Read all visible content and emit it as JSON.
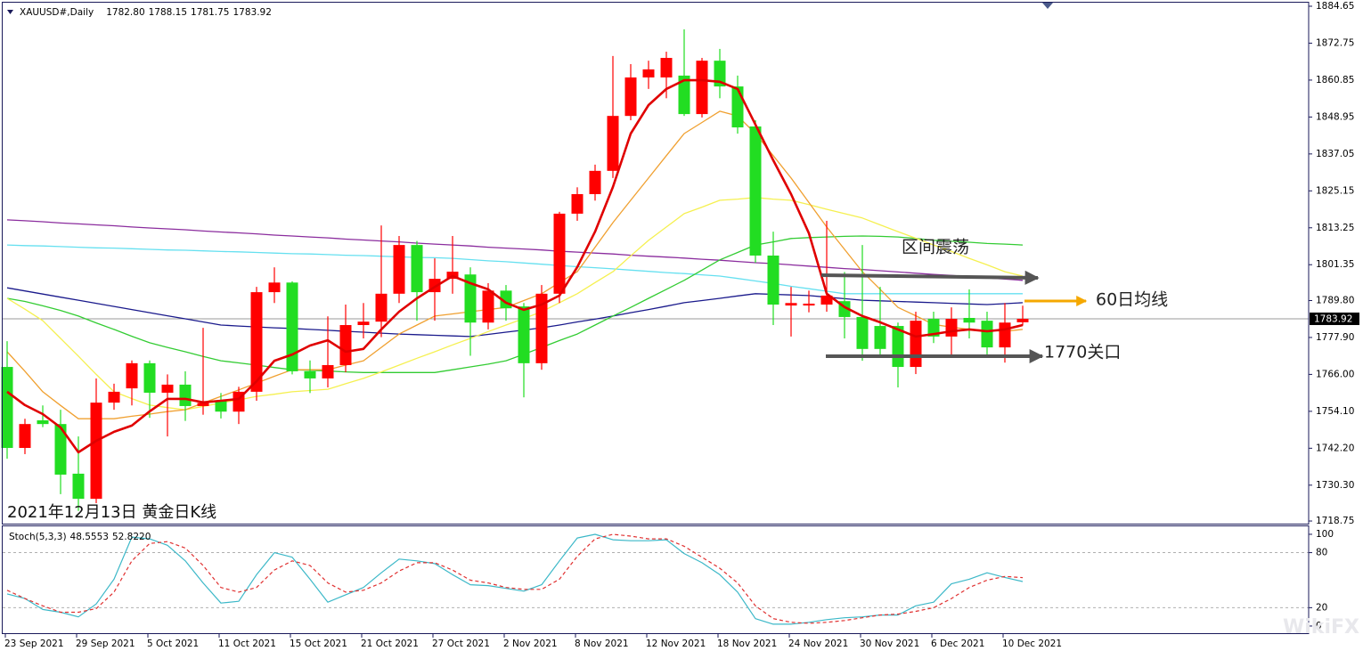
{
  "watermark": "WikiFX",
  "chart_data": [
    {
      "type": "candlestick",
      "header": {
        "symbol": "XAUUSD#,Daily",
        "values": [
          "1782.80",
          "1788.15",
          "1781.75",
          "1783.92"
        ]
      },
      "caption": "2021年12月13日 黄金日K线",
      "annotations": [
        "区间震荡",
        "60日均线",
        "1770关口"
      ],
      "categories": [
        "23 Sep 2021",
        null,
        null,
        null,
        "29 Sep 2021",
        null,
        null,
        null,
        "5 Oct 2021",
        null,
        null,
        null,
        "11 Oct 2021",
        null,
        null,
        null,
        "15 Oct 2021",
        null,
        null,
        null,
        "21 Oct 2021",
        null,
        null,
        null,
        "27 Oct 2021",
        null,
        null,
        null,
        "2 Nov 2021",
        null,
        null,
        null,
        "8 Nov 2021",
        null,
        null,
        null,
        "12 Nov 2021",
        null,
        null,
        null,
        "18 Nov 2021",
        null,
        null,
        null,
        "24 Nov 2021",
        null,
        null,
        null,
        "30 Nov 2021",
        null,
        null,
        null,
        "6 Dec 2021",
        null,
        null,
        null,
        "10 Dec 2021",
        null
      ],
      "open": [
        1768.4,
        1742.3,
        1751.2,
        1750.0,
        1734.0,
        1725.9,
        1756.9,
        1761.5,
        1769.6,
        1760.1,
        1762.7,
        1755.8,
        1757.5,
        1754.0,
        1760.4,
        1792.5,
        1795.6,
        1767.0,
        1764.7,
        1769.0,
        1781.9,
        1783.0,
        1792.0,
        1807.7,
        1792.5,
        1796.8,
        1798.2,
        1782.7,
        1793.0,
        1787.9,
        1769.6,
        1792.0,
        1817.8,
        1824.1,
        1831.6,
        1849.3,
        1861.7,
        1861.7,
        1862.3,
        1849.9,
        1867.1,
        1858.8,
        1845.9,
        1804.3,
        1788.2,
        1788.2,
        1788.5,
        1789.6,
        1784.5,
        1781.6,
        1781.6,
        1768.4,
        1783.9,
        1778.2,
        1784.2,
        1783.3,
        1774.7,
        1782.8
      ],
      "high": [
        1776.7,
        1751.7,
        1756.0,
        1754.6,
        1746.0,
        1764.7,
        1763.0,
        1770.5,
        1770.5,
        1766.0,
        1767.0,
        1781.0,
        1760.0,
        1762.0,
        1794.2,
        1800.5,
        1796.0,
        1770.5,
        1784.7,
        1788.5,
        1789.0,
        1814.0,
        1810.6,
        1809.0,
        1803.4,
        1810.6,
        1800.5,
        1795.4,
        1794.8,
        1789.0,
        1794.8,
        1818.4,
        1826.3,
        1833.6,
        1868.6,
        1866.0,
        1867.1,
        1870.0,
        1877.2,
        1868.0,
        1870.9,
        1862.3,
        1847.9,
        1812.0,
        1794.2,
        1793.0,
        1815.5,
        1799.0,
        1807.7,
        1794.2,
        1782.7,
        1786.2,
        1786.2,
        1787.6,
        1793.4,
        1786.2,
        1789.0,
        1788.15
      ],
      "low": [
        1738.8,
        1740.3,
        1749.0,
        1727.4,
        1722.0,
        1724.5,
        1754.6,
        1756.0,
        1752.0,
        1746.0,
        1751.0,
        1753.0,
        1751.8,
        1750.0,
        1757.5,
        1789.0,
        1766.0,
        1760.0,
        1761.8,
        1766.7,
        1777.6,
        1778.0,
        1789.0,
        1783.3,
        1783.3,
        1792.0,
        1772.0,
        1780.5,
        1783.3,
        1758.6,
        1767.5,
        1789.0,
        1815.5,
        1822.0,
        1829.3,
        1847.9,
        1858.0,
        1855.0,
        1849.3,
        1848.8,
        1855.0,
        1843.6,
        1802.0,
        1781.9,
        1778.2,
        1786.0,
        1786.2,
        1777.6,
        1770.4,
        1771.9,
        1761.8,
        1766.1,
        1776.1,
        1771.9,
        1777.6,
        1771.9,
        1769.8,
        1781.75
      ],
      "close": [
        1742.3,
        1750.0,
        1750.0,
        1733.7,
        1725.9,
        1756.9,
        1760.4,
        1769.6,
        1760.1,
        1762.7,
        1755.8,
        1756.8,
        1754.0,
        1760.4,
        1792.5,
        1795.6,
        1767.0,
        1764.7,
        1769.0,
        1781.9,
        1783.0,
        1792.0,
        1807.7,
        1792.5,
        1796.8,
        1799.1,
        1782.7,
        1793.0,
        1787.3,
        1769.6,
        1792.0,
        1817.8,
        1824.1,
        1831.6,
        1849.3,
        1861.7,
        1864.3,
        1868.0,
        1849.9,
        1867.1,
        1858.8,
        1845.6,
        1804.3,
        1788.5,
        1789.0,
        1788.8,
        1791.4,
        1784.5,
        1774.2,
        1774.2,
        1768.4,
        1783.3,
        1778.2,
        1783.9,
        1782.7,
        1774.7,
        1782.7,
        1783.92
      ],
      "up_color": "#ff0000",
      "down_color": "#22dd22",
      "series": [
        {
          "color": "#e00000",
          "values": [
            1760.4,
            1756.1,
            1753.2,
            1748.9,
            1740.9,
            1744.6,
            1747.5,
            1749.5,
            1754.1,
            1758.1,
            1758.1,
            1757.0,
            1757.5,
            1758.1,
            1763.8,
            1770.4,
            1772.4,
            1775.3,
            1777.0,
            1773.3,
            1774.2,
            1780.5,
            1786.2,
            1790.5,
            1794.2,
            1797.7,
            1795.4,
            1793.4,
            1789.1,
            1786.8,
            1788.5,
            1791.4,
            1800.6,
            1812.0,
            1826.4,
            1843.6,
            1852.8,
            1858.0,
            1860.8,
            1860.8,
            1860.3,
            1858.0,
            1846.5,
            1835.0,
            1824.1,
            1811.5,
            1792.0,
            1787.7,
            1784.8,
            1782.8,
            1780.5,
            1778.2,
            1779.0,
            1779.9,
            1780.5,
            1779.9,
            1780.5,
            1781.9
          ]
        },
        {
          "color": "#f0a030",
          "values": [
            1773.3,
            1767.0,
            1760.4,
            1756.0,
            1751.7,
            1751.7,
            1751.7,
            1752.5,
            1753.2,
            1754.0,
            1754.6,
            1756.8,
            1758.9,
            1761.0,
            1763.2,
            1765.4,
            1767.5,
            1767.5,
            1767.5,
            1769.0,
            1770.4,
            1774.7,
            1779.0,
            1781.9,
            1784.8,
            1785.5,
            1786.2,
            1786.9,
            1787.6,
            1789.8,
            1792.0,
            1795.6,
            1799.1,
            1807.0,
            1814.9,
            1822.1,
            1829.3,
            1836.5,
            1843.6,
            1847.2,
            1850.8,
            1849.3,
            1843.6,
            1836.5,
            1829.3,
            1821.4,
            1813.5,
            1806.3,
            1799.1,
            1793.4,
            1787.6,
            1784.9,
            1782.1,
            1781.2,
            1780.5,
            1780.2,
            1779.9,
            1780.5
          ]
        },
        {
          "color": "#f5f050",
          "values": [
            1790.5,
            1787.0,
            1783.3,
            1777.6,
            1771.9,
            1766.0,
            1760.4,
            1758.2,
            1756.1,
            1755.3,
            1754.6,
            1755.7,
            1756.8,
            1757.8,
            1758.9,
            1759.6,
            1760.4,
            1760.8,
            1761.2,
            1763.0,
            1764.7,
            1766.8,
            1769.0,
            1771.2,
            1773.3,
            1775.5,
            1777.6,
            1779.8,
            1781.9,
            1784.0,
            1786.2,
            1789.1,
            1792.0,
            1795.6,
            1799.1,
            1804.2,
            1809.2,
            1813.5,
            1817.8,
            1819.9,
            1822.1,
            1822.5,
            1823.0,
            1822.5,
            1822.1,
            1820.7,
            1819.2,
            1817.8,
            1816.4,
            1814.2,
            1812.0,
            1809.9,
            1807.7,
            1805.6,
            1803.4,
            1801.3,
            1799.1,
            1797.7
          ]
        },
        {
          "color": "#33cc33",
          "values": [
            1790.5,
            1789.5,
            1788.1,
            1786.6,
            1784.8,
            1782.6,
            1780.5,
            1778.3,
            1776.2,
            1774.7,
            1773.3,
            1771.8,
            1770.4,
            1769.7,
            1769.0,
            1768.2,
            1767.5,
            1767.3,
            1767.1,
            1766.8,
            1766.6,
            1766.6,
            1766.6,
            1766.6,
            1766.6,
            1767.5,
            1768.4,
            1769.3,
            1770.4,
            1772.5,
            1774.7,
            1776.9,
            1779.0,
            1781.9,
            1784.8,
            1787.6,
            1790.5,
            1793.4,
            1796.3,
            1799.6,
            1802.9,
            1805.3,
            1807.7,
            1808.7,
            1809.8,
            1810.1,
            1810.3,
            1810.5,
            1810.6,
            1810.5,
            1810.3,
            1809.8,
            1809.2,
            1808.9,
            1808.6,
            1808.2,
            1808.0,
            1807.7
          ]
        },
        {
          "color": "#66e0f0",
          "values": [
            1807.7,
            1807.5,
            1807.4,
            1807.2,
            1807.0,
            1806.8,
            1806.7,
            1806.5,
            1806.3,
            1806.1,
            1806.0,
            1805.8,
            1805.6,
            1805.5,
            1805.3,
            1805.1,
            1804.9,
            1804.8,
            1804.6,
            1804.4,
            1804.3,
            1804.1,
            1803.9,
            1803.7,
            1803.6,
            1803.4,
            1803.0,
            1802.6,
            1802.3,
            1801.9,
            1801.5,
            1801.1,
            1800.7,
            1800.4,
            1800.0,
            1799.6,
            1799.2,
            1798.8,
            1798.5,
            1798.1,
            1797.7,
            1796.9,
            1796.1,
            1795.3,
            1794.4,
            1793.6,
            1792.8,
            1792.0,
            1792.0,
            1792.0,
            1792.0,
            1792.0,
            1792.0,
            1792.0,
            1792.0,
            1792.0,
            1792.0,
            1792.0
          ]
        },
        {
          "color": "#1a1a8c",
          "values": [
            1793.9,
            1792.9,
            1791.9,
            1790.9,
            1789.9,
            1788.9,
            1787.9,
            1786.9,
            1785.9,
            1784.9,
            1783.9,
            1782.9,
            1781.9,
            1781.6,
            1781.3,
            1781.0,
            1780.8,
            1780.5,
            1780.2,
            1779.9,
            1779.6,
            1779.3,
            1779.0,
            1778.8,
            1778.6,
            1778.4,
            1778.2,
            1778.9,
            1779.6,
            1780.3,
            1781.0,
            1781.9,
            1782.9,
            1783.8,
            1784.8,
            1785.9,
            1786.9,
            1788.0,
            1789.1,
            1789.8,
            1790.5,
            1791.3,
            1792.0,
            1791.8,
            1791.6,
            1791.4,
            1790.9,
            1790.4,
            1789.9,
            1789.7,
            1789.5,
            1789.3,
            1789.1,
            1788.9,
            1788.7,
            1788.5,
            1788.8,
            1789.1
          ]
        },
        {
          "color": "#8b2d9e",
          "values": [
            1815.8,
            1815.5,
            1815.2,
            1814.8,
            1814.5,
            1814.2,
            1813.9,
            1813.5,
            1813.2,
            1812.9,
            1812.6,
            1812.2,
            1811.9,
            1811.6,
            1811.3,
            1810.9,
            1810.6,
            1810.3,
            1810.0,
            1809.6,
            1809.3,
            1809.0,
            1808.7,
            1808.3,
            1808.0,
            1807.7,
            1807.4,
            1807.0,
            1806.7,
            1806.4,
            1806.1,
            1805.7,
            1805.4,
            1805.1,
            1804.8,
            1804.4,
            1804.1,
            1803.8,
            1803.5,
            1803.1,
            1802.8,
            1802.4,
            1802.0,
            1801.7,
            1801.3,
            1800.9,
            1800.5,
            1800.1,
            1799.8,
            1799.4,
            1799.0,
            1798.6,
            1798.2,
            1797.9,
            1797.5,
            1797.1,
            1796.7,
            1796.3
          ]
        }
      ],
      "ylim": [
        1717.9,
        1885.8
      ],
      "yticks": [
        1884.65,
        1872.75,
        1860.85,
        1848.95,
        1837.05,
        1825.15,
        1813.25,
        1801.35,
        {
          "value": 1789.8,
          "label": "1789.80"
        },
        {
          "value": 1777.9,
          "label": "1777.90"
        },
        {
          "value": 1766,
          "label": "1766.00"
        },
        {
          "value": 1754.1,
          "label": "1754.10"
        },
        {
          "value": 1742.2,
          "label": "1742.20"
        },
        {
          "value": 1730.3,
          "label": "1730.30"
        },
        1718.75
      ],
      "last_price": 1783.92
    },
    {
      "type": "line",
      "header": {
        "name": "Stoch(5,3,3)",
        "values": [
          "48.5553",
          "52.8220"
        ]
      },
      "series": [
        {
          "color": "#3cb8c8",
          "values": [
            35,
            30,
            18,
            15,
            10,
            24,
            51,
            97,
            95,
            88,
            71,
            47,
            25,
            27,
            56,
            80,
            75,
            51,
            26,
            34,
            42,
            58,
            73,
            71,
            68,
            56,
            45,
            44,
            41,
            38,
            45,
            71,
            96,
            100,
            94,
            93,
            93,
            94,
            79,
            69,
            56,
            37,
            8,
            2,
            2,
            4,
            7,
            9,
            10,
            12,
            12,
            22,
            26,
            46,
            51,
            58,
            53,
            48.5553
          ]
        },
        {
          "color": "#e03030",
          "dashed": true,
          "values": [
            39,
            30,
            22,
            15,
            15,
            19,
            37,
            71,
            90,
            92,
            85,
            66,
            42,
            37,
            42,
            61,
            71,
            66,
            47,
            37,
            39,
            47,
            60,
            69,
            69,
            61,
            50,
            47,
            42,
            40,
            40,
            51,
            76,
            95,
            100,
            98,
            95,
            95,
            87,
            75,
            63,
            47,
            22,
            8,
            4,
            3,
            4,
            6,
            9,
            12,
            13,
            16,
            20,
            30,
            42,
            50,
            54,
            52.822
          ]
        }
      ],
      "ylim": [
        -7.8,
        108.7
      ],
      "yticks": [
        100,
        80,
        20,
        0
      ],
      "levels": [
        80,
        20
      ]
    }
  ]
}
